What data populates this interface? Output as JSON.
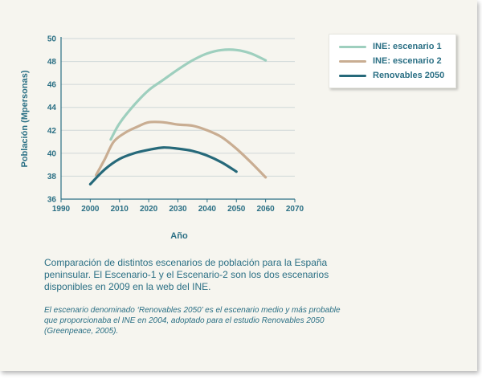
{
  "chart_data": {
    "type": "line",
    "title": "",
    "xlabel": "Año",
    "ylabel": "Población (Mpersonas)",
    "xlim": [
      1990,
      2070
    ],
    "ylim": [
      36,
      50
    ],
    "x_ticks": [
      "1990",
      "2000",
      "2010",
      "2020",
      "2030",
      "2040",
      "2050",
      "2060",
      "2070"
    ],
    "y_ticks": [
      "36",
      "38",
      "40",
      "42",
      "44",
      "46",
      "48",
      "50"
    ],
    "grid": true,
    "legend_position": "top-right",
    "series": [
      {
        "name": "INE: escenario 1",
        "color": "#9ecfbe",
        "x": [
          2007,
          2010,
          2015,
          2020,
          2025,
          2030,
          2035,
          2040,
          2045,
          2050,
          2055,
          2060
        ],
        "y": [
          41.2,
          42.6,
          44.2,
          45.5,
          46.4,
          47.3,
          48.1,
          48.7,
          49.0,
          49.0,
          48.7,
          48.1
        ]
      },
      {
        "name": "INE: escenario 2",
        "color": "#c9ad92",
        "x": [
          2002,
          2005,
          2008,
          2012,
          2016,
          2020,
          2025,
          2030,
          2035,
          2040,
          2045,
          2050,
          2055,
          2060
        ],
        "y": [
          38.1,
          39.5,
          41.0,
          41.8,
          42.3,
          42.7,
          42.7,
          42.5,
          42.4,
          42.0,
          41.4,
          40.4,
          39.2,
          37.9
        ]
      },
      {
        "name": "Renovables 2050",
        "color": "#26697a",
        "x": [
          2000,
          2005,
          2010,
          2015,
          2020,
          2025,
          2030,
          2035,
          2040,
          2045,
          2050
        ],
        "y": [
          37.3,
          38.6,
          39.5,
          40.0,
          40.3,
          40.5,
          40.4,
          40.2,
          39.8,
          39.2,
          38.4
        ]
      }
    ]
  },
  "caption": "Comparación de distintos escenarios de población para la España peninsular. El  Escenario-1 y el Escenario-2 son los dos escenarios disponibles en 2009 en la web del INE.",
  "note": "El escenario denominado ‘Renovables 2050’ es el escenario medio y más probable que proporcionaba el INE en 2004, adoptado para el estudio Renovables 2050  (Greenpeace, 2005)."
}
